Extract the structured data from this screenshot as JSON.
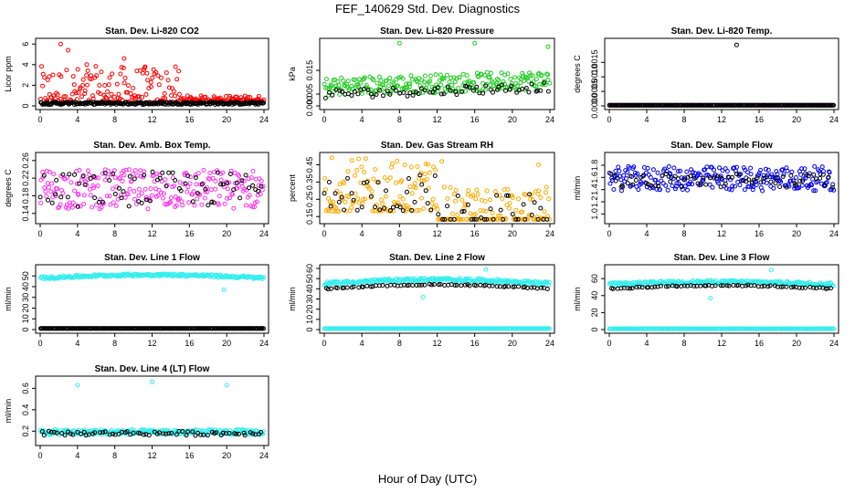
{
  "page": {
    "title": "FEF_140629  Std. Dev. Diagnostics",
    "xlabel": "Hour of Day (UTC)"
  },
  "chart_data": [
    {
      "id": "co2",
      "type": "scatter",
      "title": "Stan. Dev. Li-820 CO2",
      "xlabel": "",
      "ylabel": "Licor ppm",
      "xlim": [
        0,
        24
      ],
      "ylim": [
        0,
        6.2
      ],
      "xticks": [
        "0",
        "4",
        "8",
        "12",
        "16",
        "20",
        "24"
      ],
      "yticks": [
        "0",
        "2",
        "4",
        "6"
      ],
      "series": [
        {
          "color": "#ff0000",
          "pattern": "spread",
          "base": 0.9,
          "spread": 1.6,
          "spread_after": 0.25,
          "change_hour": 15,
          "outliers": [
            [
              2.2,
              6.0
            ],
            [
              3.0,
              5.4
            ],
            [
              9.0,
              4.6
            ],
            [
              11.2,
              3.7
            ],
            [
              5.0,
              4.0
            ]
          ]
        },
        {
          "color": "#000000",
          "pattern": "flat",
          "base": 0.25,
          "jitter": 0.12
        }
      ]
    },
    {
      "id": "pressure",
      "type": "scatter",
      "title": "Stan. Dev. Li-820 Pressure",
      "xlabel": "",
      "ylabel": "kPa",
      "xlim": [
        0,
        24
      ],
      "ylim": [
        0,
        0.027
      ],
      "xticks": [
        "0",
        "4",
        "8",
        "12",
        "16",
        "20",
        "24"
      ],
      "yticks": [
        "0.000",
        "0.005",
        "0.015"
      ],
      "ytick_values": [
        0,
        0.005,
        0.015
      ],
      "series": [
        {
          "color": "#22cc22",
          "pattern": "ramp",
          "base_start": 0.008,
          "base_end": 0.011,
          "jitter": 0.004,
          "outliers": [
            [
              8,
              0.0265
            ],
            [
              16,
              0.0265
            ],
            [
              23.8,
              0.025
            ]
          ]
        },
        {
          "color": "#000000",
          "pattern": "ramp",
          "base_start": 0.005,
          "base_end": 0.008,
          "jitter": 0.002,
          "sparse": true
        }
      ]
    },
    {
      "id": "temp",
      "type": "scatter",
      "title": "Stan. Dev. Li-820 Temp.",
      "xlabel": "",
      "ylabel": "degrees C",
      "xlim": [
        0,
        24
      ],
      "ylim": [
        0,
        0.0022
      ],
      "xticks": [
        "0",
        "4",
        "8",
        "12",
        "16",
        "20",
        "24"
      ],
      "yticks": [
        "0.0000",
        "0.0005",
        "0.0010",
        "0.0015"
      ],
      "ytick_values": [
        0,
        0.0005,
        0.001,
        0.0015
      ],
      "series": [
        {
          "color": "#ff00ff",
          "pattern": "flat",
          "base": 0,
          "jitter": 0,
          "sparse": true
        },
        {
          "color": "#000000",
          "pattern": "flat",
          "base": 0,
          "jitter": 0,
          "outliers": [
            [
              13.6,
              0.0021
            ]
          ]
        }
      ]
    },
    {
      "id": "boxtemp",
      "type": "scatter",
      "title": "Stan. Dev. Amb. Box Temp.",
      "xlabel": "",
      "ylabel": "degrees C",
      "xlim": [
        0,
        24
      ],
      "ylim": [
        0.125,
        0.27
      ],
      "xticks": [
        "0",
        "4",
        "8",
        "12",
        "16",
        "20",
        "24"
      ],
      "yticks": [
        "0.14",
        "0.18",
        "0.22",
        "0.26"
      ],
      "ytick_values": [
        0.14,
        0.18,
        0.22,
        0.26
      ],
      "series": [
        {
          "color": "#ff33ee",
          "pattern": "band",
          "base": 0.195,
          "jitter": 0.045
        },
        {
          "color": "#000000",
          "pattern": "band",
          "base": 0.195,
          "jitter": 0.04,
          "sparse": true
        }
      ]
    },
    {
      "id": "rh",
      "type": "scatter",
      "title": "Stan. Dev. Gas Stream RH",
      "xlabel": "",
      "ylabel": "percent",
      "xlim": [
        0,
        24
      ],
      "ylim": [
        0.13,
        0.5
      ],
      "xticks": [
        "0",
        "4",
        "8",
        "12",
        "16",
        "20",
        "24"
      ],
      "yticks": [
        "0.15",
        "0.25",
        "0.35",
        "0.45"
      ],
      "ytick_values": [
        0.15,
        0.25,
        0.35,
        0.45
      ],
      "series": [
        {
          "color": "#ffaa00",
          "pattern": "spread",
          "base": 0.23,
          "spread": 0.14,
          "spread_after": 0.1,
          "change_hour": 12,
          "outliers": [
            [
              0.8,
              0.49
            ],
            [
              12.5,
              0.47
            ],
            [
              22.8,
              0.45
            ]
          ]
        },
        {
          "color": "#000000",
          "pattern": "spread",
          "base": 0.22,
          "spread": 0.1,
          "spread_after": 0.08,
          "change_hour": 12,
          "sparse": true
        }
      ]
    },
    {
      "id": "sampleflow",
      "type": "scatter",
      "title": "Stan. Dev. Sample Flow",
      "xlabel": "",
      "ylabel": "ml/min",
      "xlim": [
        0,
        24
      ],
      "ylim": [
        0.9,
        1.95
      ],
      "xticks": [
        "0",
        "4",
        "8",
        "12",
        "16",
        "20",
        "24"
      ],
      "yticks": [
        "1.0",
        "1.2",
        "1.4",
        "1.6",
        "1.8"
      ],
      "ytick_values": [
        1.0,
        1.2,
        1.4,
        1.6,
        1.8
      ],
      "series": [
        {
          "color": "#0000ee",
          "pattern": "band",
          "base": 1.58,
          "jitter": 0.2
        },
        {
          "color": "#000000",
          "pattern": "band",
          "base": 1.55,
          "jitter": 0.12,
          "sparse": true
        }
      ]
    },
    {
      "id": "line1",
      "type": "scatter",
      "title": "Stan. Dev. Line 1 Flow",
      "xlabel": "",
      "ylabel": "ml/min",
      "xlim": [
        0,
        24
      ],
      "ylim": [
        0,
        57
      ],
      "xticks": [
        "0",
        "4",
        "8",
        "12",
        "16",
        "20",
        "24"
      ],
      "yticks": [
        "0",
        "10",
        "20",
        "30",
        "40",
        "50"
      ],
      "ytick_values": [
        0,
        10,
        20,
        30,
        40,
        50
      ],
      "series": [
        {
          "color": "#33eeee",
          "pattern": "hump",
          "base": 48,
          "hump": 3,
          "jitter": 1.2,
          "outliers": [
            [
              19.7,
              37
            ]
          ]
        },
        {
          "color": "#000000",
          "pattern": "flat",
          "base": 1,
          "jitter": 0
        }
      ]
    },
    {
      "id": "line2",
      "type": "scatter",
      "title": "Stan. Dev. Line 2 Flow",
      "xlabel": "",
      "ylabel": "ml/min",
      "xlim": [
        0,
        24
      ],
      "ylim": [
        0,
        60
      ],
      "xticks": [
        "0",
        "4",
        "8",
        "12",
        "16",
        "20",
        "24"
      ],
      "yticks": [
        "0",
        "10",
        "20",
        "30",
        "40",
        "50",
        "60"
      ],
      "ytick_values": [
        0,
        10,
        20,
        30,
        40,
        50,
        60
      ],
      "series": [
        {
          "color": "#33eeee",
          "pattern": "hump",
          "base": 45,
          "hump": 4,
          "jitter": 1.6,
          "outliers": [
            [
              10.5,
              32
            ],
            [
              17.2,
              59
            ]
          ]
        },
        {
          "color": "#33eeee",
          "pattern": "flat",
          "base": 1,
          "jitter": 0
        },
        {
          "color": "#000000",
          "pattern": "hump",
          "base": 40,
          "hump": 4,
          "jitter": 0.6,
          "sparse": true
        }
      ]
    },
    {
      "id": "line3",
      "type": "scatter",
      "title": "Stan. Dev. Line 3 Flow",
      "xlabel": "",
      "ylabel": "ml/min",
      "xlim": [
        0,
        24
      ],
      "ylim": [
        0,
        72
      ],
      "xticks": [
        "0",
        "4",
        "8",
        "12",
        "16",
        "20",
        "24"
      ],
      "yticks": [
        "0",
        "20",
        "40",
        "60"
      ],
      "ytick_values": [
        0,
        20,
        40,
        60
      ],
      "series": [
        {
          "color": "#33eeee",
          "pattern": "hump",
          "base": 53,
          "hump": 3,
          "jitter": 2,
          "outliers": [
            [
              10.8,
              37
            ],
            [
              17.3,
              70
            ]
          ]
        },
        {
          "color": "#33eeee",
          "pattern": "flat",
          "base": 1,
          "jitter": 0
        },
        {
          "color": "#000000",
          "pattern": "hump",
          "base": 48,
          "hump": 4,
          "jitter": 0.8,
          "sparse": true
        }
      ]
    },
    {
      "id": "line4",
      "type": "scatter",
      "title": "Stan. Dev. Line 4 (LT) Flow",
      "xlabel": "",
      "ylabel": "ml/min",
      "xlim": [
        0,
        24
      ],
      "ylim": [
        0.1,
        0.68
      ],
      "xticks": [
        "0",
        "4",
        "8",
        "12",
        "16",
        "20",
        "24"
      ],
      "yticks": [
        "0.2",
        "0.4",
        "0.6"
      ],
      "ytick_values": [
        0.2,
        0.4,
        0.6
      ],
      "series": [
        {
          "color": "#33eeee",
          "pattern": "band",
          "base": 0.19,
          "jitter": 0.025,
          "outliers": [
            [
              4,
              0.63
            ],
            [
              12,
              0.66
            ],
            [
              20,
              0.63
            ]
          ]
        },
        {
          "color": "#000000",
          "pattern": "band",
          "base": 0.18,
          "jitter": 0.02,
          "sparse": true
        }
      ]
    }
  ]
}
